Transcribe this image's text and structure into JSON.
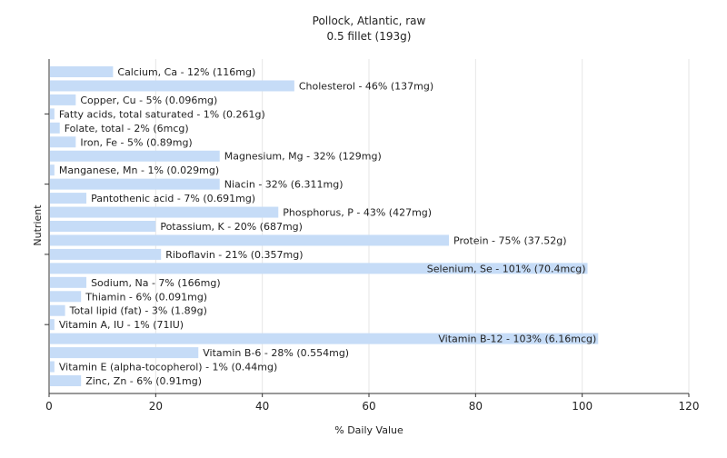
{
  "chart_data": {
    "type": "bar",
    "orientation": "horizontal",
    "title": "Pollock, Atlantic, raw",
    "subtitle": "0.5 fillet (193g)",
    "xlabel": "% Daily Value",
    "ylabel": "Nutrient",
    "xlim": [
      0,
      120
    ],
    "xticks": [
      "0",
      "20",
      "40",
      "60",
      "80",
      "100",
      "120"
    ],
    "grid": true,
    "bar_color": "#c6dcf7",
    "categories": [
      "Calcium, Ca",
      "Cholesterol",
      "Copper, Cu",
      "Fatty acids, total saturated",
      "Folate, total",
      "Iron, Fe",
      "Magnesium, Mg",
      "Manganese, Mn",
      "Niacin",
      "Pantothenic acid",
      "Phosphorus, P",
      "Potassium, K",
      "Protein",
      "Riboflavin",
      "Selenium, Se",
      "Sodium, Na",
      "Thiamin",
      "Total lipid (fat)",
      "Vitamin A, IU",
      "Vitamin B-12",
      "Vitamin B-6",
      "Vitamin E (alpha-tocopherol)",
      "Zinc, Zn"
    ],
    "values": [
      12,
      46,
      5,
      1,
      2,
      5,
      32,
      1,
      32,
      7,
      43,
      20,
      75,
      21,
      101,
      7,
      6,
      3,
      1,
      103,
      28,
      1,
      6
    ],
    "labels": [
      "Calcium, Ca - 12% (116mg)",
      "Cholesterol - 46% (137mg)",
      "Copper, Cu - 5% (0.096mg)",
      "Fatty acids, total saturated - 1% (0.261g)",
      "Folate, total - 2% (6mcg)",
      "Iron, Fe - 5% (0.89mg)",
      "Magnesium, Mg - 32% (129mg)",
      "Manganese, Mn - 1% (0.029mg)",
      "Niacin - 32% (6.311mg)",
      "Pantothenic acid - 7% (0.691mg)",
      "Phosphorus, P - 43% (427mg)",
      "Potassium, K - 20% (687mg)",
      "Protein - 75% (37.52g)",
      "Riboflavin - 21% (0.357mg)",
      "Selenium, Se - 101% (70.4mcg)",
      "Sodium, Na - 7% (166mg)",
      "Thiamin - 6% (0.091mg)",
      "Total lipid (fat) - 3% (1.89g)",
      "Vitamin A, IU - 1% (71IU)",
      "Vitamin B-12 - 103% (6.16mcg)",
      "Vitamin B-6 - 28% (0.554mg)",
      "Vitamin E (alpha-tocopherol) - 1% (0.44mg)",
      "Zinc, Zn - 6% (0.91mg)"
    ]
  }
}
